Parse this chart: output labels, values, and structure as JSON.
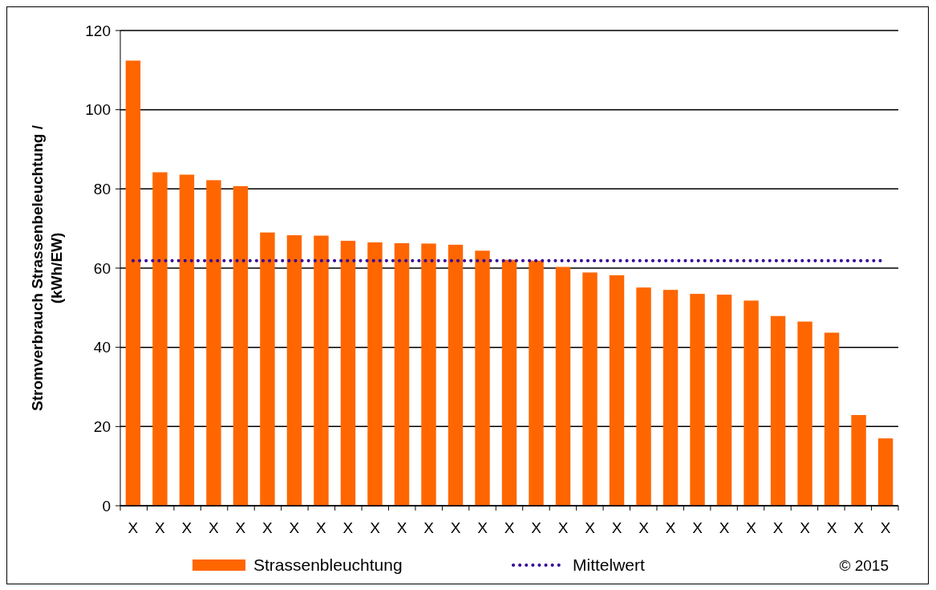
{
  "chart_data": {
    "type": "bar",
    "ylabel": "Stromverbrauch Strassenbeleuchtung  / (kWh/EW)",
    "categories": [
      "X",
      "X",
      "X",
      "X",
      "X",
      "X",
      "X",
      "X",
      "X",
      "X",
      "X",
      "X",
      "X",
      "X",
      "X",
      "X",
      "X",
      "X",
      "X",
      "X",
      "X",
      "X",
      "X",
      "X",
      "X",
      "X",
      "X",
      "X",
      "X"
    ],
    "series": [
      {
        "name": "Strassenbleuchtung",
        "color": "#ff6600",
        "values": [
          112.4,
          84.2,
          83.6,
          82.2,
          80.7,
          69.0,
          68.3,
          68.2,
          66.9,
          66.5,
          66.3,
          66.2,
          65.9,
          64.4,
          62.1,
          61.9,
          60.3,
          58.9,
          58.2,
          55.1,
          54.5,
          53.5,
          53.3,
          51.8,
          47.9,
          46.5,
          43.7,
          22.9,
          17.0
        ]
      },
      {
        "name": "Mittelwert",
        "type": "line",
        "color": "#330099",
        "line_style": "dotted",
        "values": [
          61.9,
          61.9,
          61.9,
          61.9,
          61.9,
          61.9,
          61.9,
          61.9,
          61.9,
          61.9,
          61.9,
          61.9,
          61.9,
          61.9,
          61.9,
          61.9,
          61.9,
          61.9,
          61.9,
          61.9,
          61.9,
          61.9,
          61.9,
          61.9,
          61.9,
          61.9,
          61.9,
          61.9,
          61.9
        ]
      }
    ],
    "ylim": [
      0,
      120
    ],
    "yticks": [
      0,
      20,
      40,
      60,
      80,
      100,
      120
    ],
    "grid": "y",
    "legend": "bottom",
    "marker": "none",
    "annotations": [
      "© 2015"
    ]
  }
}
